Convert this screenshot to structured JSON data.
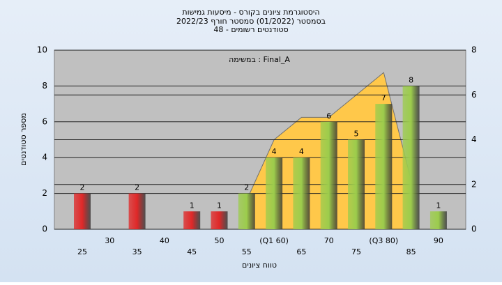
{
  "chart_data": {
    "type": "bar",
    "title": "היסטוגרמת ציונים בקורס - מיסעות גמישות",
    "subtitle": "בסמסטר  (01/2022)  סמסטר חורף 2022/23",
    "subtitle2": "סטודנטים רשומים - 48",
    "annotation": "במשימה : Final_A",
    "y_label": "מספר סטודנטים",
    "x_label": "טווח ציונים",
    "categories": [
      "25",
      "30",
      "35",
      "40",
      "45",
      "50",
      "55",
      "(Q1 60)",
      "65",
      "70",
      "75",
      "(Q3 80)",
      "85",
      "90"
    ],
    "values": [
      2,
      0,
      2,
      0,
      1,
      1,
      2,
      4,
      4,
      6,
      5,
      7,
      8,
      1
    ],
    "colors": [
      "#e02828",
      "#e02828",
      "#e02828",
      "#e02828",
      "#e02828",
      "#e02828",
      "#9ccc4c",
      "#9ccc4c",
      "#9ccc4c",
      "#9ccc4c",
      "#9ccc4c",
      "#9ccc4c",
      "#9ccc4c",
      "#9ccc4c"
    ],
    "area": {
      "axis": "y2",
      "color": "#ffc84a",
      "values": [
        null,
        null,
        null,
        null,
        null,
        null,
        1.3,
        4,
        5,
        5,
        6,
        7,
        2.2,
        null
      ]
    },
    "ylim": [
      0,
      10
    ],
    "yticks": [
      0,
      2,
      4,
      6,
      8,
      10
    ],
    "y2lim": [
      0,
      8
    ],
    "y2ticks": [
      0,
      2,
      4,
      6,
      8
    ],
    "grid": true
  }
}
